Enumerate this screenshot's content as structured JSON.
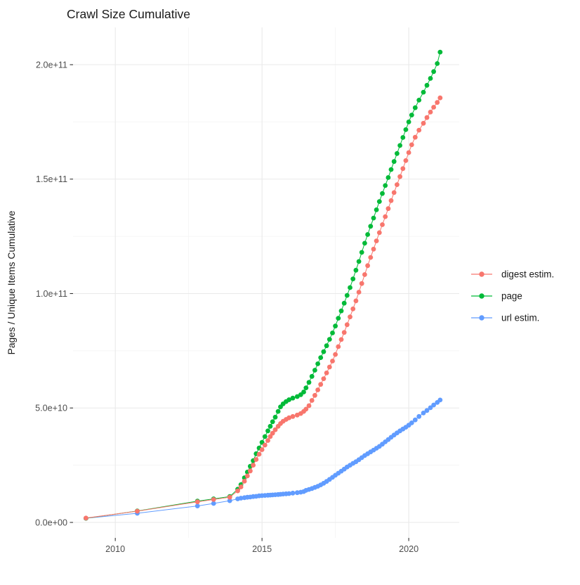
{
  "chart_data": {
    "type": "scatter",
    "title": "Crawl Size Cumulative",
    "xlabel": "",
    "ylabel": "Pages / Unique Items Cumulative",
    "value_units": "count, stored as multiples of 1e9 (billions)",
    "xlim": [
      2008.56,
      2021.72
    ],
    "ylim_e9": [
      -6.76,
      216.28
    ],
    "grid": true,
    "legend_position": "right",
    "x_ticks": [
      {
        "v": 2010,
        "label": "2010"
      },
      {
        "v": 2015,
        "label": "2015"
      },
      {
        "v": 2020,
        "label": "2020"
      }
    ],
    "x_minor": [
      2012.5,
      2017.5
    ],
    "y_ticks": [
      {
        "v": 0,
        "label": "0.0e+00"
      },
      {
        "v": 50,
        "label": "5.0e+10"
      },
      {
        "v": 100,
        "label": "1.0e+11"
      },
      {
        "v": 150,
        "label": "1.5e+11"
      },
      {
        "v": 200,
        "label": "2.0e+11"
      }
    ],
    "y_minor": [
      25,
      75,
      125,
      175
    ],
    "colors": {
      "digest": "#F8766D",
      "page": "#00BA38",
      "url": "#619CFF",
      "grid_major": "#E9E9E9",
      "grid_minor": "#F3F3F3",
      "axis_text": "#4D4D4D",
      "tick_mark": "#333333"
    },
    "series": [
      {
        "name": "digest estim.",
        "color": "#F8766D",
        "points": [
          [
            2009.0,
            1.9
          ],
          [
            2010.75,
            4.9
          ],
          [
            2012.8,
            9.0
          ],
          [
            2013.35,
            10.0
          ],
          [
            2013.9,
            11.0
          ],
          [
            2014.17,
            13.8
          ],
          [
            2014.28,
            15.5
          ],
          [
            2014.4,
            18.0
          ],
          [
            2014.5,
            20.3
          ],
          [
            2014.6,
            22.5
          ],
          [
            2014.7,
            25.0
          ],
          [
            2014.8,
            27.5
          ],
          [
            2014.9,
            29.8
          ],
          [
            2015.0,
            31.8
          ],
          [
            2015.1,
            33.8
          ],
          [
            2015.2,
            35.8
          ],
          [
            2015.28,
            37.5
          ],
          [
            2015.36,
            39.0
          ],
          [
            2015.45,
            40.5
          ],
          [
            2015.55,
            42.0
          ],
          [
            2015.63,
            43.2
          ],
          [
            2015.72,
            44.2
          ],
          [
            2015.82,
            45.0
          ],
          [
            2015.92,
            45.7
          ],
          [
            2016.05,
            46.3
          ],
          [
            2016.2,
            46.9
          ],
          [
            2016.32,
            47.6
          ],
          [
            2016.42,
            48.5
          ],
          [
            2016.5,
            49.5
          ],
          [
            2016.6,
            51.0
          ],
          [
            2016.7,
            53.3
          ],
          [
            2016.8,
            55.5
          ],
          [
            2016.9,
            57.9
          ],
          [
            2017.0,
            60.3
          ],
          [
            2017.1,
            62.8
          ],
          [
            2017.2,
            65.3
          ],
          [
            2017.3,
            67.9
          ],
          [
            2017.4,
            70.5
          ],
          [
            2017.5,
            73.4
          ],
          [
            2017.6,
            76.8
          ],
          [
            2017.7,
            79.9
          ],
          [
            2017.8,
            83.0
          ],
          [
            2017.9,
            86.4
          ],
          [
            2018.0,
            89.8
          ],
          [
            2018.1,
            93.3
          ],
          [
            2018.2,
            96.8
          ],
          [
            2018.3,
            100.6
          ],
          [
            2018.4,
            104.4
          ],
          [
            2018.5,
            108.3
          ],
          [
            2018.6,
            112.2
          ],
          [
            2018.7,
            115.8
          ],
          [
            2018.8,
            119.4
          ],
          [
            2018.9,
            123.0
          ],
          [
            2019.0,
            126.6
          ],
          [
            2019.1,
            130.1
          ],
          [
            2019.2,
            133.6
          ],
          [
            2019.3,
            137.1
          ],
          [
            2019.4,
            140.6
          ],
          [
            2019.5,
            144.1
          ],
          [
            2019.6,
            147.6
          ],
          [
            2019.7,
            151.1
          ],
          [
            2019.8,
            154.6
          ],
          [
            2019.9,
            158.1
          ],
          [
            2020.0,
            161.6
          ],
          [
            2020.1,
            165.0
          ],
          [
            2020.22,
            168.3
          ],
          [
            2020.35,
            171.4
          ],
          [
            2020.5,
            174.4
          ],
          [
            2020.62,
            176.9
          ],
          [
            2020.74,
            179.3
          ],
          [
            2020.85,
            181.4
          ],
          [
            2020.97,
            183.5
          ],
          [
            2021.07,
            185.5
          ]
        ]
      },
      {
        "name": "page",
        "color": "#00BA38",
        "points": [
          [
            2009.0,
            1.8
          ],
          [
            2010.75,
            5.0
          ],
          [
            2012.8,
            9.3
          ],
          [
            2013.35,
            10.3
          ],
          [
            2013.9,
            11.3
          ],
          [
            2014.17,
            14.5
          ],
          [
            2014.28,
            16.5
          ],
          [
            2014.4,
            19.5
          ],
          [
            2014.5,
            22.0
          ],
          [
            2014.6,
            24.5
          ],
          [
            2014.7,
            27.0
          ],
          [
            2014.8,
            30.0
          ],
          [
            2014.9,
            32.5
          ],
          [
            2015.0,
            35.0
          ],
          [
            2015.1,
            37.5
          ],
          [
            2015.2,
            40.0
          ],
          [
            2015.28,
            42.0
          ],
          [
            2015.36,
            44.0
          ],
          [
            2015.45,
            46.0
          ],
          [
            2015.55,
            48.5
          ],
          [
            2015.63,
            50.5
          ],
          [
            2015.72,
            51.8
          ],
          [
            2015.82,
            52.8
          ],
          [
            2015.92,
            53.6
          ],
          [
            2016.05,
            54.3
          ],
          [
            2016.2,
            55.0
          ],
          [
            2016.32,
            55.8
          ],
          [
            2016.42,
            57.0
          ],
          [
            2016.5,
            58.8
          ],
          [
            2016.6,
            61.2
          ],
          [
            2016.7,
            63.8
          ],
          [
            2016.8,
            66.5
          ],
          [
            2016.9,
            69.3
          ],
          [
            2017.0,
            72.0
          ],
          [
            2017.1,
            74.6
          ],
          [
            2017.2,
            77.2
          ],
          [
            2017.3,
            80.0
          ],
          [
            2017.4,
            82.8
          ],
          [
            2017.5,
            85.8
          ],
          [
            2017.6,
            89.2
          ],
          [
            2017.7,
            92.4
          ],
          [
            2017.8,
            95.8
          ],
          [
            2017.9,
            99.2
          ],
          [
            2018.0,
            102.6
          ],
          [
            2018.1,
            106.4
          ],
          [
            2018.2,
            110.2
          ],
          [
            2018.3,
            114.0
          ],
          [
            2018.4,
            118.0
          ],
          [
            2018.5,
            122.0
          ],
          [
            2018.6,
            125.8
          ],
          [
            2018.7,
            129.4
          ],
          [
            2018.8,
            133.0
          ],
          [
            2018.9,
            136.6
          ],
          [
            2019.0,
            140.2
          ],
          [
            2019.1,
            143.7
          ],
          [
            2019.2,
            147.2
          ],
          [
            2019.3,
            150.7
          ],
          [
            2019.4,
            154.2
          ],
          [
            2019.5,
            157.7
          ],
          [
            2019.6,
            161.2
          ],
          [
            2019.7,
            164.7
          ],
          [
            2019.8,
            168.2
          ],
          [
            2019.9,
            171.6
          ],
          [
            2020.0,
            175.0
          ],
          [
            2020.1,
            178.0
          ],
          [
            2020.22,
            181.2
          ],
          [
            2020.35,
            184.5
          ],
          [
            2020.5,
            188.0
          ],
          [
            2020.62,
            191.0
          ],
          [
            2020.74,
            194.0
          ],
          [
            2020.85,
            197.0
          ],
          [
            2020.97,
            200.5
          ],
          [
            2021.07,
            205.5
          ]
        ]
      },
      {
        "name": "url estim.",
        "color": "#619CFF",
        "points": [
          [
            2009.0,
            1.8
          ],
          [
            2010.75,
            4.0
          ],
          [
            2012.8,
            7.2
          ],
          [
            2013.35,
            8.3
          ],
          [
            2013.9,
            9.5
          ],
          [
            2014.17,
            10.3
          ],
          [
            2014.28,
            10.6
          ],
          [
            2014.4,
            10.8
          ],
          [
            2014.5,
            11.0
          ],
          [
            2014.6,
            11.1
          ],
          [
            2014.7,
            11.3
          ],
          [
            2014.8,
            11.4
          ],
          [
            2014.9,
            11.6
          ],
          [
            2015.0,
            11.7
          ],
          [
            2015.1,
            11.8
          ],
          [
            2015.2,
            11.9
          ],
          [
            2015.28,
            11.95
          ],
          [
            2015.36,
            12.0
          ],
          [
            2015.45,
            12.1
          ],
          [
            2015.55,
            12.2
          ],
          [
            2015.63,
            12.3
          ],
          [
            2015.72,
            12.4
          ],
          [
            2015.82,
            12.5
          ],
          [
            2015.92,
            12.6
          ],
          [
            2016.05,
            12.8
          ],
          [
            2016.2,
            13.0
          ],
          [
            2016.32,
            13.2
          ],
          [
            2016.42,
            13.5
          ],
          [
            2016.5,
            14.0
          ],
          [
            2016.6,
            14.4
          ],
          [
            2016.7,
            14.8
          ],
          [
            2016.8,
            15.3
          ],
          [
            2016.9,
            15.8
          ],
          [
            2017.0,
            16.4
          ],
          [
            2017.1,
            17.1
          ],
          [
            2017.2,
            17.9
          ],
          [
            2017.3,
            18.8
          ],
          [
            2017.4,
            19.7
          ],
          [
            2017.5,
            20.6
          ],
          [
            2017.6,
            21.5
          ],
          [
            2017.7,
            22.4
          ],
          [
            2017.8,
            23.3
          ],
          [
            2017.9,
            24.2
          ],
          [
            2018.0,
            25.0
          ],
          [
            2018.1,
            25.8
          ],
          [
            2018.2,
            26.5
          ],
          [
            2018.3,
            27.4
          ],
          [
            2018.4,
            28.3
          ],
          [
            2018.5,
            29.2
          ],
          [
            2018.6,
            30.0
          ],
          [
            2018.7,
            30.8
          ],
          [
            2018.8,
            31.6
          ],
          [
            2018.9,
            32.4
          ],
          [
            2019.0,
            33.2
          ],
          [
            2019.1,
            34.2
          ],
          [
            2019.2,
            35.2
          ],
          [
            2019.3,
            36.2
          ],
          [
            2019.4,
            37.2
          ],
          [
            2019.5,
            38.2
          ],
          [
            2019.6,
            39.1
          ],
          [
            2019.7,
            40.0
          ],
          [
            2019.8,
            40.8
          ],
          [
            2019.9,
            41.6
          ],
          [
            2020.0,
            42.5
          ],
          [
            2020.1,
            43.5
          ],
          [
            2020.22,
            44.8
          ],
          [
            2020.35,
            46.3
          ],
          [
            2020.5,
            47.8
          ],
          [
            2020.62,
            48.9
          ],
          [
            2020.74,
            50.1
          ],
          [
            2020.85,
            51.3
          ],
          [
            2020.97,
            52.4
          ],
          [
            2021.07,
            53.5
          ]
        ]
      }
    ]
  }
}
